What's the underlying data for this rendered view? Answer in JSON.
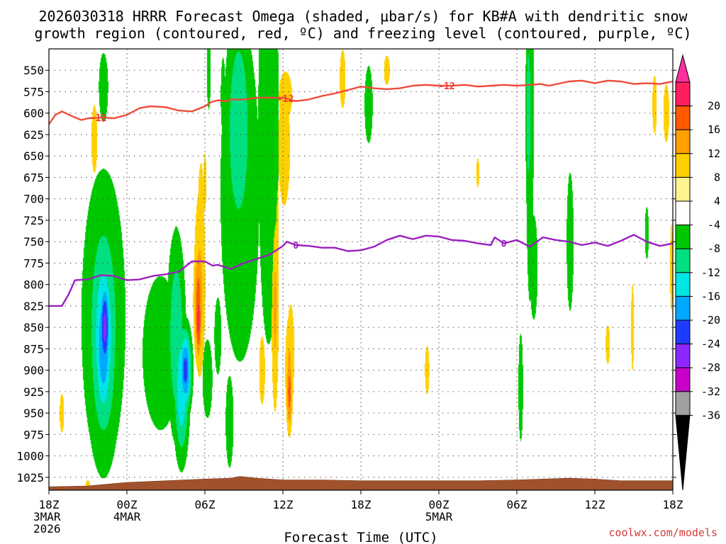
{
  "title_line1": "2026030318 HRRR Forecast Omega (shaded, μbar/s) for KB#A with dendritic snow",
  "title_line2": "growth region (contoured, red, ºC) and freezing level (contoured, purple, ºC)",
  "credit": "coolwx.com/models",
  "chart_data": {
    "type": "heatmap",
    "title": "2026030318 HRRR Forecast Omega (shaded, μbar/s) for KB#A with dendritic snow growth region (contoured, red, ºC) and freezing level (contoured, purple, ºC)",
    "xlabel": "Forecast Time (UTC)",
    "ylabel": "",
    "x_range_hours": [
      0,
      48
    ],
    "y_range_mb": [
      1040,
      525
    ],
    "y_ticks": [
      550,
      575,
      600,
      625,
      650,
      675,
      700,
      725,
      750,
      775,
      800,
      825,
      850,
      875,
      900,
      925,
      950,
      975,
      1000,
      1025
    ],
    "x_ticks": [
      {
        "hour": 0,
        "lines": [
          "18Z",
          "3MAR",
          "2026"
        ]
      },
      {
        "hour": 6,
        "lines": [
          "00Z",
          "4MAR"
        ]
      },
      {
        "hour": 12,
        "lines": [
          "06Z"
        ]
      },
      {
        "hour": 18,
        "lines": [
          "12Z"
        ]
      },
      {
        "hour": 24,
        "lines": [
          "18Z"
        ]
      },
      {
        "hour": 30,
        "lines": [
          "00Z",
          "5MAR"
        ]
      },
      {
        "hour": 36,
        "lines": [
          "06Z"
        ]
      },
      {
        "hour": 42,
        "lines": [
          "12Z"
        ]
      },
      {
        "hour": 48,
        "lines": [
          "18Z"
        ]
      }
    ],
    "grid": true,
    "colorbar": {
      "labels": [
        20,
        16,
        12,
        8,
        4,
        -4,
        -8,
        -12,
        -16,
        -20,
        -24,
        -28,
        -32,
        -36
      ],
      "colors": [
        "#ff1f5f",
        "#ff5a00",
        "#ffa000",
        "#ffd000",
        "#fff38f",
        "#ffffff",
        "#00c800",
        "#00e080",
        "#00e6e6",
        "#00a8ff",
        "#1e3cff",
        "#8c28ff",
        "#c800c8",
        "#a0a0a0",
        "#000000"
      ],
      "top_arrow_color": "#ff2f9f",
      "bottom_arrow_color": "#000000"
    },
    "omega_blobs": [
      {
        "h": 1.3,
        "p": 845,
        "rh": 0.8,
        "rp": 150,
        "v": 4
      },
      {
        "h": 1.0,
        "p": 950,
        "rh": 0.3,
        "rp": 40,
        "v": 5
      },
      {
        "h": 3.5,
        "p": 630,
        "rh": 0.4,
        "rp": 70,
        "v": 5
      },
      {
        "h": 3.0,
        "p": 1040,
        "rh": 0.4,
        "rp": 20,
        "v": 5
      },
      {
        "h": 4.2,
        "p": 840,
        "rh": 1.7,
        "rp": 175,
        "v": -8
      },
      {
        "h": 4.2,
        "p": 850,
        "rh": 1.2,
        "rp": 140,
        "v": -12
      },
      {
        "h": 4.2,
        "p": 860,
        "rh": 0.9,
        "rp": 110,
        "v": -16
      },
      {
        "h": 4.2,
        "p": 870,
        "rh": 0.6,
        "rp": 80,
        "v": -20
      },
      {
        "h": 4.3,
        "p": 850,
        "rh": 0.35,
        "rp": 50,
        "v": -26
      },
      {
        "h": 3.7,
        "p": 740,
        "rh": 0.3,
        "rp": 70,
        "v": -7
      },
      {
        "h": 4.2,
        "p": 570,
        "rh": 0.4,
        "rp": 45,
        "v": -7
      },
      {
        "h": 8.6,
        "p": 880,
        "rh": 1.4,
        "rp": 90,
        "v": -8
      },
      {
        "h": 9.8,
        "p": 860,
        "rh": 0.6,
        "rp": 100,
        "v": -12
      },
      {
        "h": 10.2,
        "p": 920,
        "rh": 0.5,
        "rp": 70,
        "v": -16
      },
      {
        "h": 10.5,
        "p": 900,
        "rh": 0.4,
        "rp": 40,
        "v": -22
      },
      {
        "h": 9.8,
        "p": 770,
        "rh": 0.4,
        "rp": 50,
        "v": -6
      },
      {
        "h": 11.7,
        "p": 760,
        "rh": 0.5,
        "rp": 180,
        "v": 5
      },
      {
        "h": 11.6,
        "p": 800,
        "rh": 0.4,
        "rp": 100,
        "v": 9
      },
      {
        "h": 11.5,
        "p": 820,
        "rh": 0.3,
        "rp": 60,
        "v": 14
      },
      {
        "h": 11.5,
        "p": 840,
        "rh": 0.2,
        "rp": 40,
        "v": 18
      },
      {
        "h": 12.0,
        "p": 680,
        "rh": 0.2,
        "rp": 60,
        "v": 5
      },
      {
        "h": 12.2,
        "p": 910,
        "rh": 0.5,
        "rp": 60,
        "v": -6
      },
      {
        "h": 12.3,
        "p": 550,
        "rh": 0.2,
        "rp": 60,
        "v": -6
      },
      {
        "h": 13.0,
        "p": 860,
        "rh": 0.3,
        "rp": 50,
        "v": -7
      },
      {
        "h": 13.4,
        "p": 580,
        "rh": 0.2,
        "rp": 50,
        "v": -7
      },
      {
        "h": 13.9,
        "p": 960,
        "rh": 0.4,
        "rp": 70,
        "v": -6
      },
      {
        "h": 14.7,
        "p": 690,
        "rh": 1.5,
        "rp": 200,
        "v": -8
      },
      {
        "h": 14.6,
        "p": 620,
        "rh": 0.9,
        "rp": 120,
        "v": -12
      },
      {
        "h": 16.9,
        "p": 620,
        "rh": 0.8,
        "rp": 250,
        "v": -8
      },
      {
        "h": 16.4,
        "p": 900,
        "rh": 0.4,
        "rp": 70,
        "v": 5
      },
      {
        "h": 17.4,
        "p": 700,
        "rh": 0.5,
        "rp": 300,
        "v": 5
      },
      {
        "h": 17.4,
        "p": 830,
        "rh": 0.25,
        "rp": 110,
        "v": 9
      },
      {
        "h": 18.1,
        "p": 640,
        "rh": 0.8,
        "rp": 120,
        "v": 5
      },
      {
        "h": 18.2,
        "p": 580,
        "rh": 0.9,
        "rp": 50,
        "v": 5
      },
      {
        "h": 18.6,
        "p": 880,
        "rh": 0.5,
        "rp": 100,
        "v": 5
      },
      {
        "h": 18.5,
        "p": 900,
        "rh": 0.3,
        "rp": 60,
        "v": 9
      },
      {
        "h": 18.5,
        "p": 925,
        "rh": 0.2,
        "rp": 40,
        "v": 14
      },
      {
        "h": 22.6,
        "p": 560,
        "rh": 0.4,
        "rp": 60,
        "v": 5
      },
      {
        "h": 24.6,
        "p": 590,
        "rh": 0.35,
        "rp": 50,
        "v": -7
      },
      {
        "h": 26.0,
        "p": 550,
        "rh": 0.4,
        "rp": 30,
        "v": 5
      },
      {
        "h": 29.1,
        "p": 900,
        "rh": 0.3,
        "rp": 50,
        "v": 5
      },
      {
        "h": 33.0,
        "p": 670,
        "rh": 0.2,
        "rp": 30,
        "v": 5
      },
      {
        "h": 36.3,
        "p": 920,
        "rh": 0.2,
        "rp": 70,
        "v": -7
      },
      {
        "h": 37.0,
        "p": 600,
        "rh": 0.3,
        "rp": 220,
        "v": -8
      },
      {
        "h": 36.9,
        "p": 600,
        "rh": 0.2,
        "rp": 90,
        "v": -12
      },
      {
        "h": 37.3,
        "p": 780,
        "rh": 0.4,
        "rp": 80,
        "v": -6
      },
      {
        "h": 40.1,
        "p": 750,
        "rh": 0.3,
        "rp": 90,
        "v": -7
      },
      {
        "h": 43.0,
        "p": 870,
        "rh": 0.3,
        "rp": 40,
        "v": 5
      },
      {
        "h": 44.9,
        "p": 850,
        "rh": 0.2,
        "rp": 90,
        "v": 5
      },
      {
        "h": 46.0,
        "p": 740,
        "rh": 0.2,
        "rp": 40,
        "v": -6
      },
      {
        "h": 46.6,
        "p": 590,
        "rh": 0.3,
        "rp": 60,
        "v": 5
      },
      {
        "h": 47.5,
        "p": 600,
        "rh": 0.4,
        "rp": 60,
        "v": 5
      },
      {
        "h": 47.9,
        "p": 780,
        "rh": 0.2,
        "rp": 90,
        "v": 5
      }
    ],
    "contours": [
      {
        "value": -12,
        "color": "#ef4a3a",
        "label": "-12",
        "points": [
          [
            0,
            613
          ],
          [
            0.5,
            602
          ],
          [
            1,
            598
          ],
          [
            2,
            605
          ],
          [
            2.5,
            608
          ],
          [
            3,
            606
          ],
          [
            4,
            605
          ],
          [
            5,
            606
          ],
          [
            6,
            602
          ],
          [
            6.5,
            598
          ],
          [
            7,
            594
          ],
          [
            7.8,
            592
          ],
          [
            9,
            593
          ],
          [
            10,
            597
          ],
          [
            11,
            598
          ],
          [
            12,
            592
          ],
          [
            12.5,
            587
          ],
          [
            13,
            585
          ],
          [
            13.7,
            586
          ],
          [
            14,
            584
          ],
          [
            15,
            584
          ],
          [
            16,
            582
          ],
          [
            17,
            582
          ],
          [
            18,
            582
          ],
          [
            19,
            586
          ],
          [
            20,
            584
          ],
          [
            21,
            580
          ],
          [
            22,
            577
          ],
          [
            23,
            573
          ],
          [
            24,
            569
          ],
          [
            25,
            571
          ],
          [
            26,
            572
          ],
          [
            27,
            571
          ],
          [
            28,
            568
          ],
          [
            29,
            567
          ],
          [
            30,
            568
          ],
          [
            31,
            568
          ],
          [
            32,
            567
          ],
          [
            33,
            569
          ],
          [
            34,
            568
          ],
          [
            35,
            567
          ],
          [
            36,
            568
          ],
          [
            37,
            567
          ],
          [
            37.8,
            566
          ],
          [
            38.5,
            568
          ],
          [
            40,
            563
          ],
          [
            41,
            562
          ],
          [
            42,
            565
          ],
          [
            43,
            562
          ],
          [
            44,
            563
          ],
          [
            45,
            566
          ],
          [
            46,
            565
          ],
          [
            47,
            566
          ],
          [
            48,
            563
          ]
        ],
        "label_hours": [
          3.8,
          18.2,
          30.6
        ]
      },
      {
        "value": 0,
        "color": "#9b1fc0",
        "label": "0",
        "points": [
          [
            0,
            825
          ],
          [
            1,
            825
          ],
          [
            1.5,
            812
          ],
          [
            2,
            795
          ],
          [
            3,
            794
          ],
          [
            4,
            789
          ],
          [
            5,
            790
          ],
          [
            6,
            795
          ],
          [
            7,
            794
          ],
          [
            8,
            790
          ],
          [
            9,
            788
          ],
          [
            10,
            785
          ],
          [
            11,
            773
          ],
          [
            12,
            773
          ],
          [
            12.6,
            778
          ],
          [
            13,
            777
          ],
          [
            14,
            782
          ],
          [
            15,
            775
          ],
          [
            16,
            770
          ],
          [
            17,
            765
          ],
          [
            18,
            755
          ],
          [
            18.3,
            750
          ],
          [
            19,
            754
          ],
          [
            20,
            755
          ],
          [
            21,
            757
          ],
          [
            22,
            757
          ],
          [
            23,
            761
          ],
          [
            24,
            760
          ],
          [
            25,
            756
          ],
          [
            26,
            748
          ],
          [
            27,
            743
          ],
          [
            28,
            747
          ],
          [
            29,
            743
          ],
          [
            30,
            744
          ],
          [
            31,
            748
          ],
          [
            32,
            749
          ],
          [
            33,
            752
          ],
          [
            34,
            754
          ],
          [
            34.3,
            745
          ],
          [
            35,
            752
          ],
          [
            36,
            748
          ],
          [
            37,
            756
          ],
          [
            38,
            745
          ],
          [
            39,
            748
          ],
          [
            40,
            750
          ],
          [
            41,
            754
          ],
          [
            42,
            751
          ],
          [
            43,
            755
          ],
          [
            44,
            749
          ],
          [
            45,
            742
          ],
          [
            46,
            750
          ],
          [
            47,
            755
          ],
          [
            48,
            752
          ]
        ],
        "label_hours": [
          19.0,
          35.0
        ]
      }
    ],
    "terrain": {
      "color": "#a0522d",
      "points": [
        [
          0,
          1036
        ],
        [
          3,
          1035
        ],
        [
          6,
          1031
        ],
        [
          9,
          1029
        ],
        [
          12,
          1027
        ],
        [
          14,
          1026
        ],
        [
          14.7,
          1024
        ],
        [
          16,
          1026
        ],
        [
          18,
          1028
        ],
        [
          21,
          1028
        ],
        [
          24,
          1029
        ],
        [
          27,
          1029
        ],
        [
          30,
          1029
        ],
        [
          33,
          1029
        ],
        [
          36,
          1028
        ],
        [
          38,
          1027
        ],
        [
          40,
          1026
        ],
        [
          42,
          1027
        ],
        [
          44,
          1029
        ],
        [
          48,
          1029
        ]
      ]
    }
  }
}
